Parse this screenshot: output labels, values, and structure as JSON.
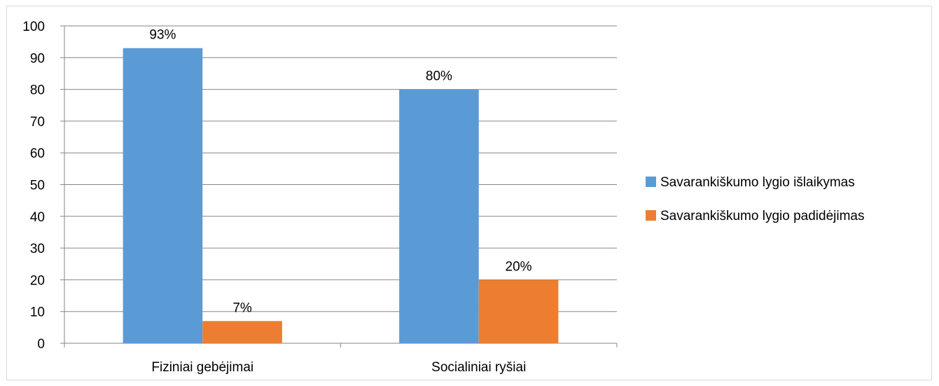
{
  "chart_data": {
    "type": "bar",
    "title": "",
    "xlabel": "",
    "ylabel": "",
    "categories": [
      "Fiziniai gebėjimai",
      "Socialiniai ryšiai"
    ],
    "series": [
      {
        "name": "Savarankiškumo lygio išlaikymas",
        "values": [
          93,
          80
        ],
        "labels": [
          "93%",
          "80%"
        ],
        "color": "#5b9bd5"
      },
      {
        "name": "Savarankiškumo lygio padidėjimas",
        "values": [
          7,
          20
        ],
        "labels": [
          "7%",
          "20%"
        ],
        "color": "#ed7d31"
      }
    ],
    "ylim": [
      0,
      100
    ],
    "yticks": [
      0,
      10,
      20,
      30,
      40,
      50,
      60,
      70,
      80,
      90,
      100
    ],
    "grid": true,
    "legend_position": "right"
  }
}
